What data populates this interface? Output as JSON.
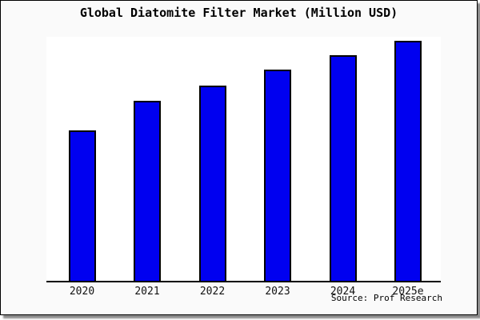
{
  "title": "Global Diatomite Filter Market (Million USD)",
  "source": "Source: Prof Research",
  "colors": {
    "bar_fill": "#0000f0",
    "bar_border": "#000000",
    "frame_background": "#fafafa",
    "plot_background": "#ffffff",
    "axis_line": "#000000",
    "shadow": "#8a8a8a",
    "title_text": "#000000",
    "tick_text": "#111111"
  },
  "chart_data": {
    "type": "bar",
    "title": "Global Diatomite Filter Market (Million USD)",
    "categories": [
      "2020",
      "2021",
      "2022",
      "2023",
      "2024",
      "2025e"
    ],
    "values": [
      62.7,
      75.0,
      81.3,
      87.7,
      93.7,
      100
    ],
    "value_note": "y-axis has no tick labels; values are relative estimates read from bar heights, normalized so 2025e = 100",
    "xlabel": "",
    "ylabel": "",
    "ylim": [
      0,
      101.5
    ],
    "grid": false,
    "legend": false,
    "bar_color": "#0000f0",
    "bar_border_color": "#000000",
    "source_annotation": "Source: Prof Research"
  }
}
